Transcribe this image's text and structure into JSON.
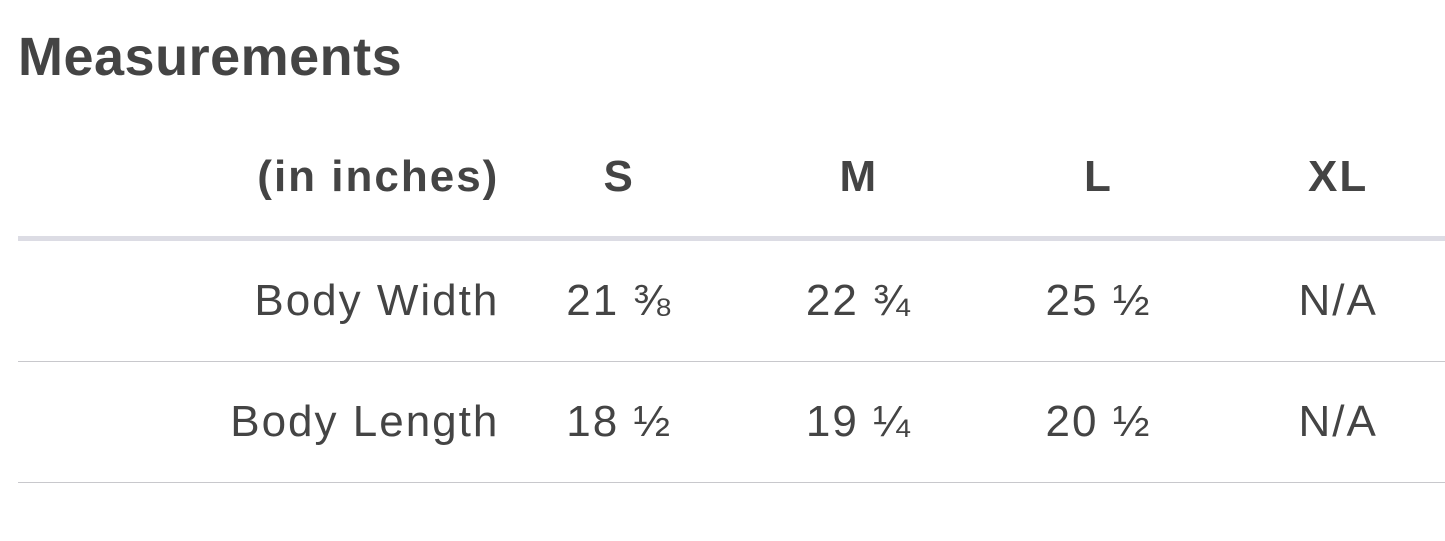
{
  "title": "Measurements",
  "table": {
    "unit_header": "(in inches)",
    "sizes": [
      "S",
      "M",
      "L",
      "XL"
    ],
    "rows": [
      {
        "label": "Body Width",
        "values": [
          "21 ⅜",
          "22 ¾",
          "25 ½",
          "N/A"
        ]
      },
      {
        "label": "Body Length",
        "values": [
          "18 ½",
          "19 ¼",
          "20 ½",
          "N/A"
        ]
      }
    ]
  }
}
